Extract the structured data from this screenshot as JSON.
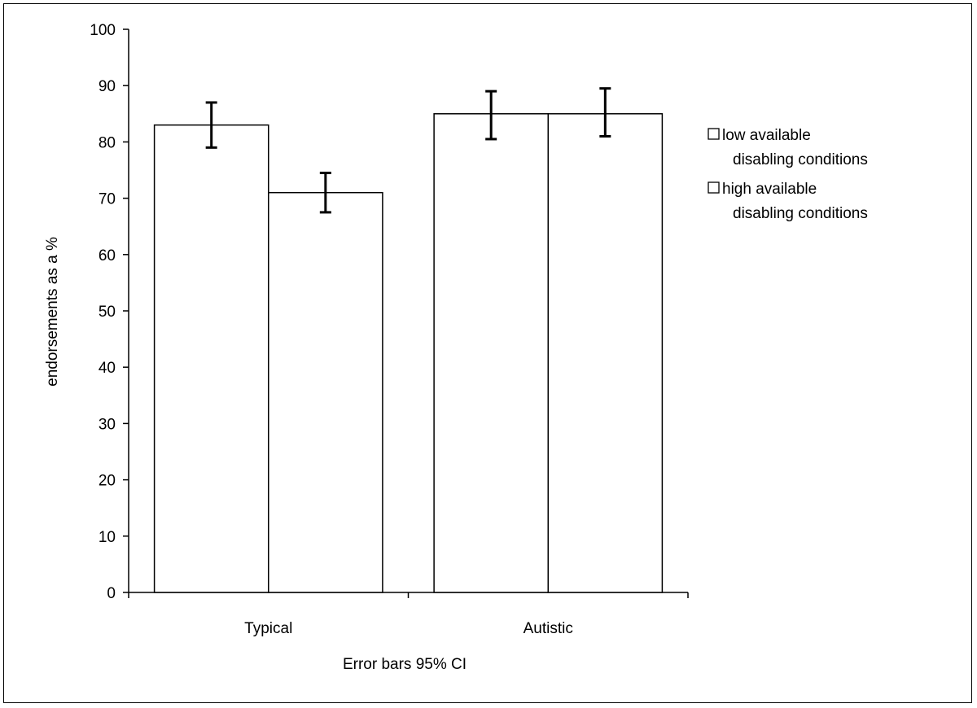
{
  "chart_data": {
    "type": "bar",
    "categories": [
      "Typical",
      "Autistic"
    ],
    "series": [
      {
        "name": "low available disabling conditions",
        "name_lines": [
          "low available",
          "disabling conditions"
        ],
        "values": [
          83,
          85
        ],
        "ci_low": [
          79,
          80.5
        ],
        "ci_high": [
          87,
          89
        ]
      },
      {
        "name": "high available disabling conditions",
        "name_lines": [
          "high available",
          "disabling conditions"
        ],
        "values": [
          71,
          85
        ],
        "ci_low": [
          67.5,
          81
        ],
        "ci_high": [
          74.5,
          89.5
        ]
      }
    ],
    "ylabel": "endorsements  as a %",
    "xlabel": "Error bars 95% CI",
    "ylim": [
      0,
      100
    ],
    "yticks": [
      0,
      10,
      20,
      30,
      40,
      50,
      60,
      70,
      80,
      90,
      100
    ],
    "grid": false,
    "legend": "right",
    "bar_fill": "#ffffff",
    "stroke_color": "#000000"
  }
}
